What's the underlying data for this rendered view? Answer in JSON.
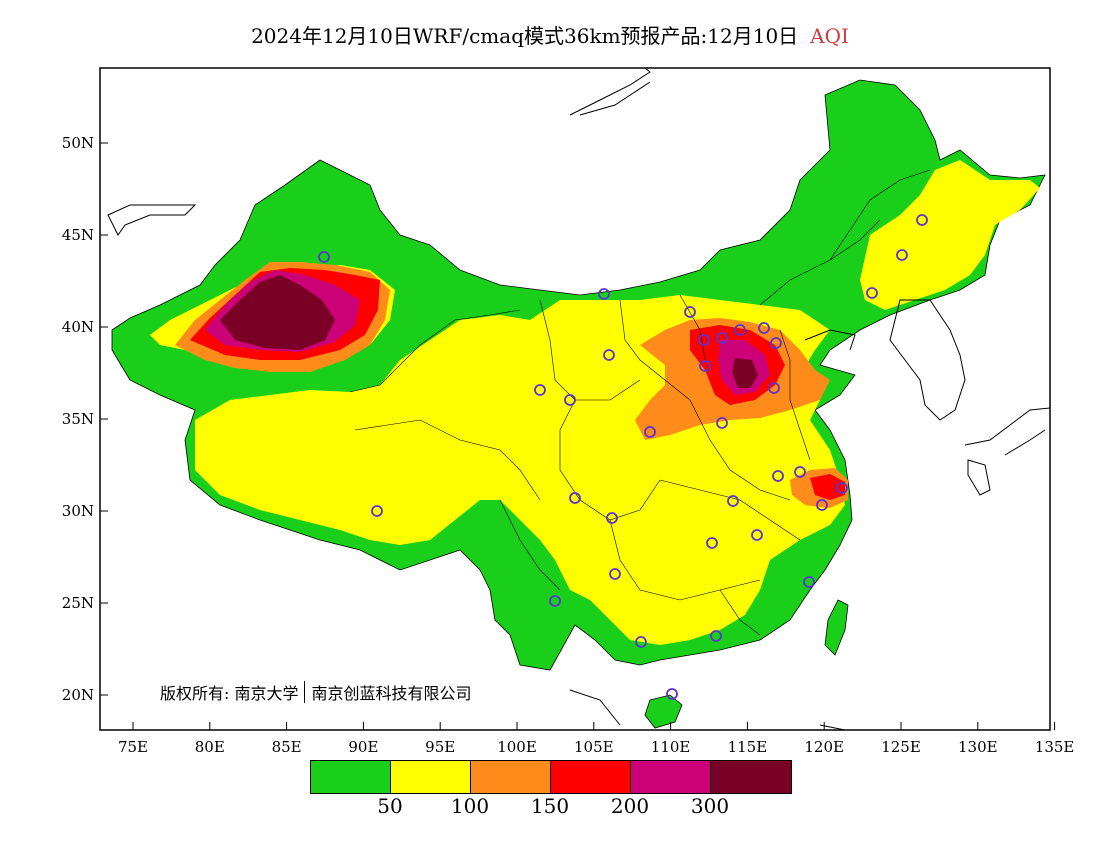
{
  "title": {
    "main": "2024年12月10日WRF/cmaq模式36km预报产品:12月10日",
    "variable": "AQI"
  },
  "axes": {
    "x_ticks": [
      "75E",
      "80E",
      "85E",
      "90E",
      "95E",
      "100E",
      "105E",
      "110E",
      "115E",
      "120E",
      "125E",
      "130E",
      "135E"
    ],
    "y_ticks": [
      "50N",
      "45N",
      "40N",
      "35N",
      "30N",
      "25N",
      "20N"
    ]
  },
  "legend": {
    "colors": [
      "#19cf19",
      "#ffff00",
      "#ff8c1a",
      "#ff0000",
      "#cc0077",
      "#7a0025"
    ],
    "labels": [
      "50",
      "100",
      "150",
      "200",
      "300"
    ]
  },
  "copyright": {
    "part1": "版权所有: 南京大学",
    "part2": "南京创蓝科技有限公司"
  },
  "icons": {
    "station_marker": "circle-marker-icon"
  }
}
